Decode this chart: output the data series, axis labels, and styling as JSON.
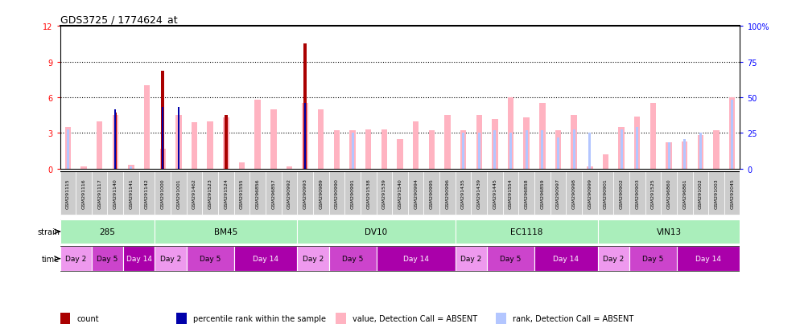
{
  "title": "GDS3725 / 1774624_at",
  "samples": [
    "GSM291115",
    "GSM291116",
    "GSM291117",
    "GSM291140",
    "GSM291141",
    "GSM291142",
    "GSM291000",
    "GSM291001",
    "GSM291462",
    "GSM291523",
    "GSM291524",
    "GSM291555",
    "GSM296856",
    "GSM296857",
    "GSM290992",
    "GSM290993",
    "GSM290989",
    "GSM290990",
    "GSM290991",
    "GSM291538",
    "GSM291539",
    "GSM291540",
    "GSM290994",
    "GSM290995",
    "GSM290996",
    "GSM291435",
    "GSM291439",
    "GSM291445",
    "GSM291554",
    "GSM296858",
    "GSM296859",
    "GSM290997",
    "GSM290998",
    "GSM290999",
    "GSM290901",
    "GSM290902",
    "GSM290903",
    "GSM291525",
    "GSM296860",
    "GSM296861",
    "GSM291002",
    "GSM291003",
    "GSM292045"
  ],
  "strains": [
    {
      "label": "285",
      "start": 0,
      "end": 6
    },
    {
      "label": "BM45",
      "start": 6,
      "end": 15
    },
    {
      "label": "DV10",
      "start": 15,
      "end": 25
    },
    {
      "label": "EC1118",
      "start": 25,
      "end": 34
    },
    {
      "label": "VIN13",
      "start": 34,
      "end": 43
    }
  ],
  "time_groups": [
    {
      "label": "Day 2",
      "start": 0,
      "end": 2
    },
    {
      "label": "Day 5",
      "start": 2,
      "end": 4
    },
    {
      "label": "Day 14",
      "start": 4,
      "end": 6
    },
    {
      "label": "Day 2",
      "start": 6,
      "end": 8
    },
    {
      "label": "Day 5",
      "start": 8,
      "end": 11
    },
    {
      "label": "Day 14",
      "start": 11,
      "end": 15
    },
    {
      "label": "Day 2",
      "start": 15,
      "end": 17
    },
    {
      "label": "Day 5",
      "start": 17,
      "end": 20
    },
    {
      "label": "Day 14",
      "start": 20,
      "end": 25
    },
    {
      "label": "Day 2",
      "start": 25,
      "end": 27
    },
    {
      "label": "Day 5",
      "start": 27,
      "end": 30
    },
    {
      "label": "Day 14",
      "start": 30,
      "end": 34
    },
    {
      "label": "Day 2",
      "start": 34,
      "end": 36
    },
    {
      "label": "Day 5",
      "start": 36,
      "end": 39
    },
    {
      "label": "Day 14",
      "start": 39,
      "end": 43
    }
  ],
  "count_values": [
    0,
    0,
    0,
    4.7,
    0,
    0,
    8.2,
    0,
    0,
    0,
    4.5,
    0,
    0,
    0,
    0,
    10.5,
    0,
    0,
    0,
    0,
    0,
    0,
    0,
    0,
    0,
    0,
    0,
    0,
    0,
    0,
    0,
    0,
    0,
    0,
    0,
    0,
    0,
    0,
    0,
    0,
    0,
    0,
    0
  ],
  "rank_values": [
    0,
    0,
    0,
    5.0,
    0,
    0,
    5.2,
    5.2,
    0,
    0,
    0,
    0,
    0,
    0,
    0,
    5.5,
    0,
    0,
    0,
    0,
    0,
    0,
    0,
    0,
    0,
    0,
    0,
    0,
    0,
    0,
    0,
    0,
    0,
    0,
    0,
    0,
    0,
    0,
    0,
    0,
    0,
    0,
    0
  ],
  "absent_value": [
    3.5,
    0.2,
    4.0,
    4.5,
    0.3,
    7.0,
    1.7,
    4.5,
    3.9,
    4.0,
    4.3,
    0.5,
    5.8,
    5.0,
    0.2,
    5.5,
    5.0,
    3.2,
    3.2,
    3.3,
    3.3,
    2.5,
    4.0,
    3.2,
    4.5,
    3.2,
    4.5,
    4.2,
    6.0,
    4.3,
    5.5,
    3.2,
    4.5,
    0.2,
    1.2,
    3.5,
    4.4,
    5.5,
    2.2,
    2.3,
    2.8,
    3.2,
    6.0
  ],
  "absent_rank": [
    3.3,
    0,
    0,
    0,
    0.2,
    0,
    0,
    0,
    0,
    0,
    0,
    0,
    0,
    0,
    0,
    0,
    0,
    0,
    3.0,
    0,
    0,
    0,
    0,
    0,
    0,
    3.0,
    3.0,
    3.2,
    3.0,
    3.2,
    3.2,
    2.6,
    3.3,
    3.0,
    0,
    3.3,
    3.5,
    0,
    2.2,
    2.5,
    3.0,
    0,
    5.8
  ],
  "ylim_left": [
    0,
    12
  ],
  "ylim_right": [
    0,
    100
  ],
  "yticks_left": [
    0,
    3,
    6,
    9,
    12
  ],
  "yticks_right": [
    0,
    25,
    50,
    75,
    100
  ],
  "count_color": "#aa0000",
  "rank_color": "#0000aa",
  "absent_value_color": "#ffb3c1",
  "absent_rank_color": "#b3c6ff",
  "bg_color": "#ffffff",
  "strain_color": "#aaeebb",
  "time_color_day2": "#ee99ee",
  "time_color_day5": "#cc44cc",
  "time_color_day14": "#aa00aa",
  "label_row_bg": "#d0d0d0",
  "legend_items": [
    {
      "color": "#aa0000",
      "label": "count"
    },
    {
      "color": "#0000aa",
      "label": "percentile rank within the sample"
    },
    {
      "color": "#ffb3c1",
      "label": "value, Detection Call = ABSENT"
    },
    {
      "color": "#b3c6ff",
      "label": "rank, Detection Call = ABSENT"
    }
  ]
}
